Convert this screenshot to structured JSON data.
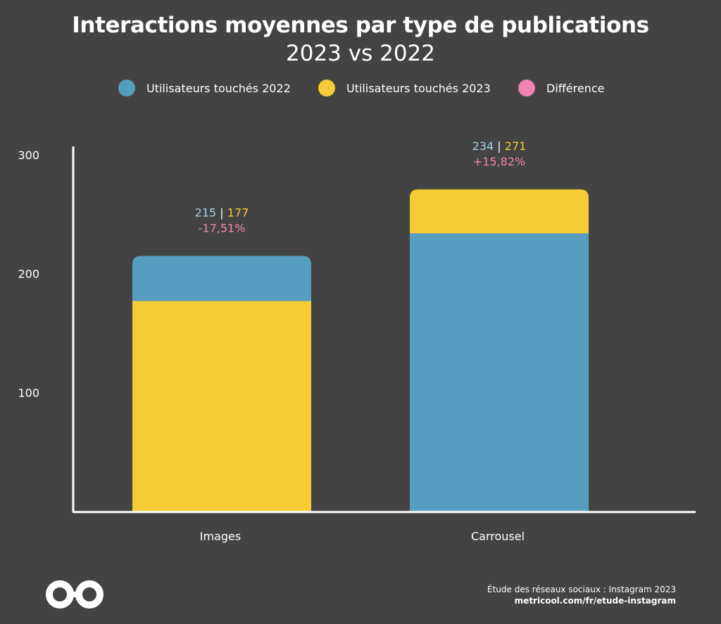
{
  "colors": {
    "background": "#434343",
    "series_2022": "#579dbf",
    "series_2023": "#f5cb36",
    "difference": "#f283ae",
    "label_2022": "#a6d3e6",
    "axis": "#ffffff"
  },
  "legend": {
    "items": [
      {
        "label": "Utilisateurs touchés 2022",
        "color": "#579dbf"
      },
      {
        "label": "Utilisateurs touchés 2023",
        "color": "#f5cb36"
      },
      {
        "label": "Différence",
        "color": "#f283ae"
      }
    ]
  },
  "footer": {
    "source": "Étude des réseaux sociaux : Instagram 2023",
    "url": "metricool.com/fr/etude-instagram"
  },
  "logo": {
    "icon": "infinity-logo-icon"
  },
  "chart_data": {
    "type": "bar",
    "title": "Interactions moyennes par type de publications",
    "subtitle": "2023 vs 2022",
    "xlabel": "",
    "ylabel": "",
    "categories": [
      "Images",
      "Carrousel"
    ],
    "series": [
      {
        "name": "Utilisateurs touchés 2022",
        "values": [
          215,
          234
        ]
      },
      {
        "name": "Utilisateurs touchés 2023",
        "values": [
          177,
          271
        ]
      }
    ],
    "difference": [
      "-17,51%",
      "+15,82%"
    ],
    "data_labels": [
      {
        "v2022": "215",
        "v2023": "177",
        "diff": "-17,51%"
      },
      {
        "v2022": "234",
        "v2023": "271",
        "diff": "+15,82%"
      }
    ],
    "ylim": [
      0,
      300
    ],
    "yticks": [
      100,
      200,
      300
    ],
    "overlay": "overlapped",
    "grid": false,
    "legend_position": "top"
  }
}
